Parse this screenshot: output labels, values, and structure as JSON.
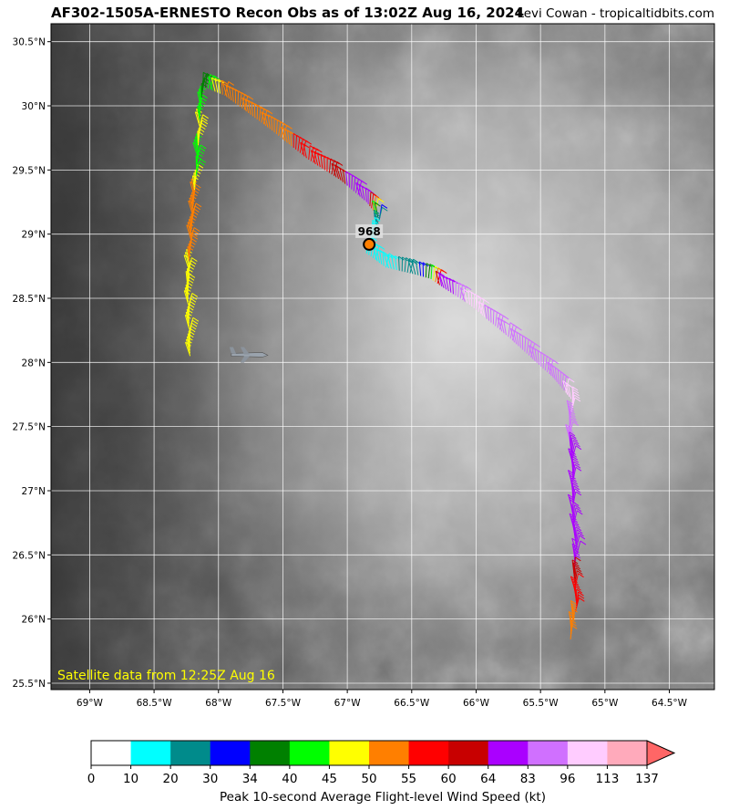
{
  "header": {
    "title": "AF302-1505A-ERNESTO Recon Obs as of 13:02Z Aug 16, 2024",
    "credit": "Levi Cowan - tropicaltidbits.com"
  },
  "map": {
    "satellite_note": "Satellite data from 12:25Z Aug 16",
    "storm_center_pressure": "968",
    "lon_ticks": [
      "69°W",
      "68.5°W",
      "68°W",
      "67.5°W",
      "67°W",
      "66.5°W",
      "66°W",
      "65.5°W",
      "65°W",
      "64.5°W"
    ],
    "lat_ticks": [
      "30.5°N",
      "30°N",
      "29.5°N",
      "29°N",
      "28.5°N",
      "28°N",
      "27.5°N",
      "27°N",
      "26.5°N",
      "26°N",
      "25.5°N"
    ],
    "lon_range": [
      -69.3,
      -64.15
    ],
    "lat_range": [
      25.45,
      30.64
    ],
    "storm_center": {
      "lon": -66.83,
      "lat": 28.92
    },
    "aircraft_position": {
      "lon": -67.9,
      "lat": 28.07
    }
  },
  "flight_track": [
    {
      "lon": -68.22,
      "lat": 28.05,
      "kt": 47
    },
    {
      "lon": -68.24,
      "lat": 28.6,
      "kt": 47
    },
    {
      "lon": -68.22,
      "lat": 28.9,
      "kt": 52
    },
    {
      "lon": -68.19,
      "lat": 29.3,
      "kt": 52
    },
    {
      "lon": -68.17,
      "lat": 29.5,
      "kt": 42
    },
    {
      "lon": -68.15,
      "lat": 29.8,
      "kt": 47
    },
    {
      "lon": -68.14,
      "lat": 30.0,
      "kt": 42
    },
    {
      "lon": -68.12,
      "lat": 30.15,
      "kt": 37
    },
    {
      "lon": -67.95,
      "lat": 30.08,
      "kt": 52
    },
    {
      "lon": -67.6,
      "lat": 29.82,
      "kt": 52
    },
    {
      "lon": -67.3,
      "lat": 29.58,
      "kt": 57
    },
    {
      "lon": -67.05,
      "lat": 29.42,
      "kt": 62
    },
    {
      "lon": -66.85,
      "lat": 29.25,
      "kt": 70
    },
    {
      "lon": -66.75,
      "lat": 29.12,
      "kt": 32
    },
    {
      "lon": -66.78,
      "lat": 29.0,
      "kt": 15
    },
    {
      "lon": -66.85,
      "lat": 28.85,
      "kt": 15
    },
    {
      "lon": -66.7,
      "lat": 28.74,
      "kt": 15
    },
    {
      "lon": -66.45,
      "lat": 28.68,
      "kt": 27
    },
    {
      "lon": -66.35,
      "lat": 28.65,
      "kt": 42
    },
    {
      "lon": -66.25,
      "lat": 28.58,
      "kt": 70
    },
    {
      "lon": -66.05,
      "lat": 28.45,
      "kt": 100
    },
    {
      "lon": -65.75,
      "lat": 28.2,
      "kt": 90
    },
    {
      "lon": -65.4,
      "lat": 27.88,
      "kt": 90
    },
    {
      "lon": -65.25,
      "lat": 27.7,
      "kt": 100
    },
    {
      "lon": -65.28,
      "lat": 27.45,
      "kt": 90
    },
    {
      "lon": -65.25,
      "lat": 27.2,
      "kt": 70
    },
    {
      "lon": -65.25,
      "lat": 26.8,
      "kt": 70
    },
    {
      "lon": -65.22,
      "lat": 26.5,
      "kt": 70
    },
    {
      "lon": -65.24,
      "lat": 26.35,
      "kt": 62
    },
    {
      "lon": -65.22,
      "lat": 26.1,
      "kt": 57
    },
    {
      "lon": -65.25,
      "lat": 25.95,
      "kt": 52
    },
    {
      "lon": -65.27,
      "lat": 25.82,
      "kt": 52
    }
  ],
  "colorbar": {
    "title": "Peak 10-second Average Flight-level Wind Speed (kt)",
    "labels": [
      "0",
      "10",
      "20",
      "30",
      "34",
      "40",
      "45",
      "50",
      "55",
      "60",
      "64",
      "83",
      "96",
      "113",
      "137"
    ],
    "colors": [
      "#ffffff",
      "#00ffff",
      "#008b8b",
      "#0000ff",
      "#008000",
      "#00ff00",
      "#ffff00",
      "#ff7f00",
      "#ff0000",
      "#c80000",
      "#aa00ff",
      "#d070ff",
      "#ffccff",
      "#ffaabb"
    ],
    "extend_color": "#ff6666"
  }
}
